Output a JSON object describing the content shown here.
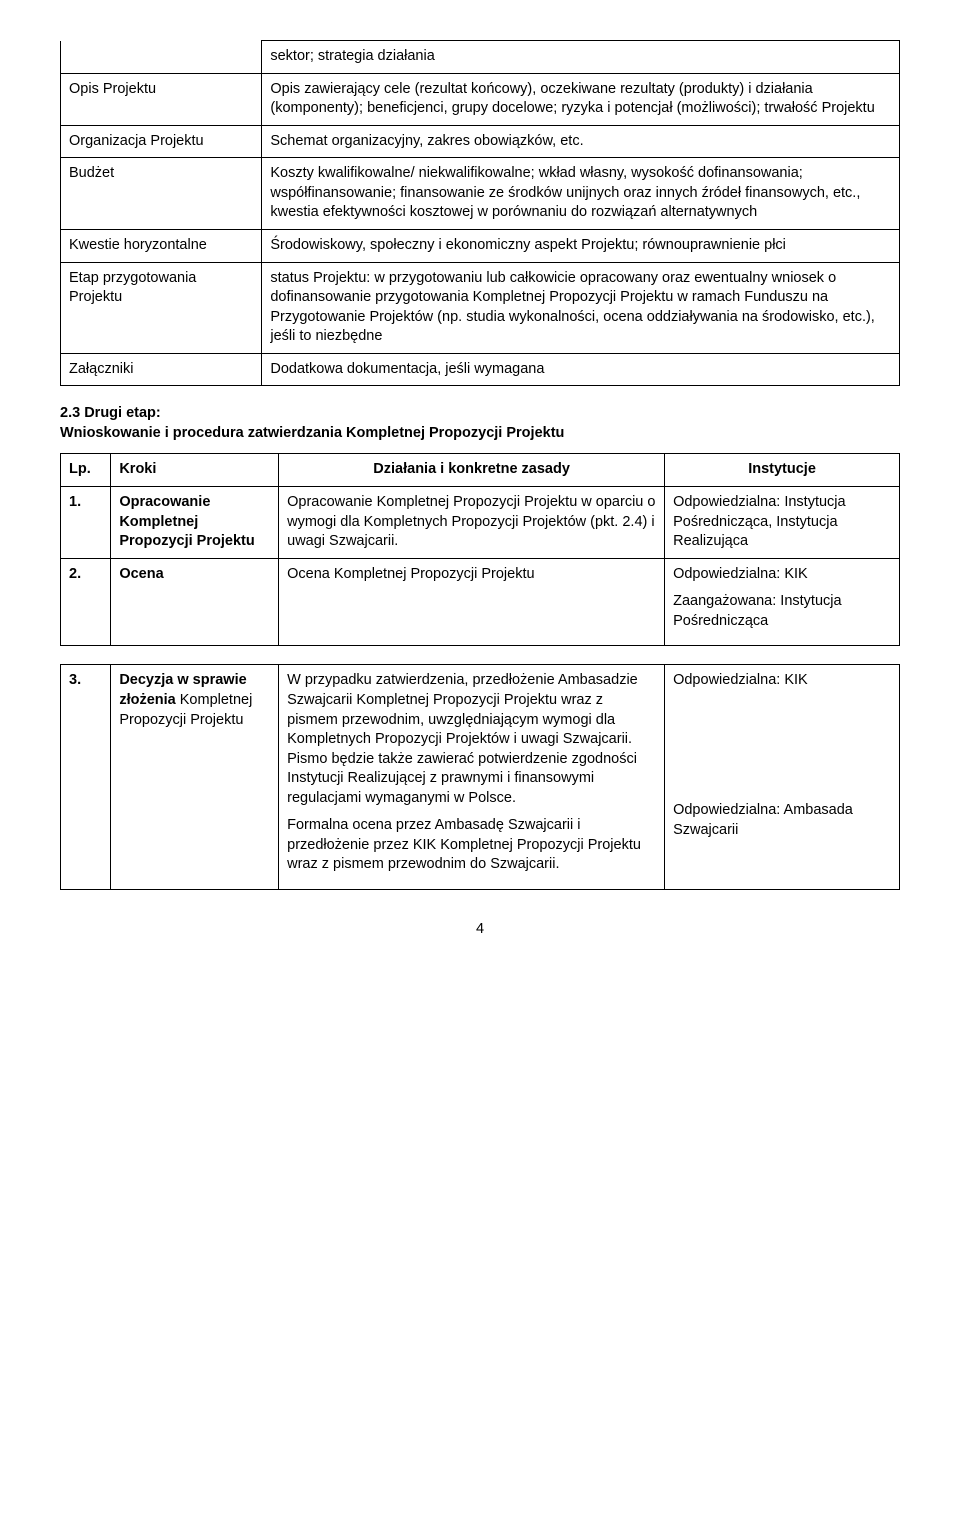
{
  "table1": {
    "rows": [
      {
        "label": "",
        "value": "sektor; strategia działania",
        "labelNoTop": true,
        "valNoTop": false
      },
      {
        "label": "Opis Projektu",
        "value": "Opis zawierający cele (rezultat końcowy), oczekiwane rezultaty (produkty) i działania (komponenty); beneficjenci, grupy docelowe; ryzyka i potencjał (możliwości); trwałość Projektu"
      },
      {
        "label": "Organizacja Projektu",
        "value": "Schemat organizacyjny, zakres obowiązków, etc."
      },
      {
        "label": "Budżet",
        "value": "Koszty kwalifikowalne/ niekwalifikowalne; wkład własny, wysokość dofinansowania; współfinansowanie; finansowanie ze środków unijnych oraz innych źródeł finansowych, etc., kwestia efektywności kosztowej w porównaniu do rozwiązań alternatywnych"
      },
      {
        "label": "Kwestie horyzontalne",
        "value": "Środowiskowy, społeczny i ekonomiczny aspekt Projektu; równouprawnienie płci"
      },
      {
        "label": "Etap przygotowania Projektu",
        "value": "status Projektu: w przygotowaniu lub całkowicie opracowany oraz ewentualny wniosek o dofinansowanie przygotowania Kompletnej Propozycji Projektu w ramach Funduszu na Przygotowanie Projektów (np. studia wykonalności, ocena oddziaływania na środowisko, etc.), jeśli to niezbędne"
      },
      {
        "label": "Załączniki",
        "value": "Dodatkowa dokumentacja, jeśli wymagana"
      }
    ]
  },
  "section23": {
    "number": "2.3",
    "title": "Drugi etap:\nWnioskowanie i procedura zatwierdzania Kompletnej Propozycji Projektu"
  },
  "table2": {
    "headers": {
      "lp": "Lp.",
      "step": "Kroki",
      "actions": "Działania i konkretne zasady",
      "inst": "Instytucje"
    },
    "rows": [
      {
        "lp": "1.",
        "step": "Opracowanie Kompletnej Propozycji Projektu",
        "actions": "Opracowanie Kompletnej Propozycji Projektu w oparciu o wymogi dla Kompletnych Propozycji Projektów  (pkt. 2.4) i uwagi Szwajcarii.",
        "inst": "Odpowiedzialna: Instytucja Pośrednicząca, Instytucja Realizująca"
      },
      {
        "lp": "2.",
        "step": "Ocena",
        "actions": "Ocena Kompletnej Propozycji Projektu",
        "inst_p1": "Odpowiedzialna: KIK",
        "inst_p2": "Zaangażowana: Instytucja Pośrednicząca"
      }
    ]
  },
  "table3": {
    "lp": "3.",
    "step": "Decyzja w sprawie złożenia Kompletnej Propozycji Projektu",
    "step_bold": "Decyzja w sprawie złożenia",
    "step_rest": " Kompletnej Propozycji Projektu",
    "actions_p1": "W przypadku zatwierdzenia, przedłożenie Ambasadzie Szwajcarii Kompletnej Propozycji Projektu wraz z pismem przewodnim,  uwzględniającym wymogi dla Kompletnych Propozycji Projektów i uwagi Szwajcarii.  Pismo będzie także zawierać potwierdzenie zgodności Instytucji Realizującej z prawnymi i finansowymi regulacjami wymaganymi w Polsce.",
    "actions_p2": "Formalna ocena przez Ambasadę Szwajcarii i przedłożenie przez KIK Kompletnej Propozycji Projektu wraz z pismem przewodnim do Szwajcarii.",
    "inst_p1": "Odpowiedzialna: KIK",
    "inst_p2": "Odpowiedzialna: Ambasada Szwajcarii"
  },
  "pageNumber": "4"
}
